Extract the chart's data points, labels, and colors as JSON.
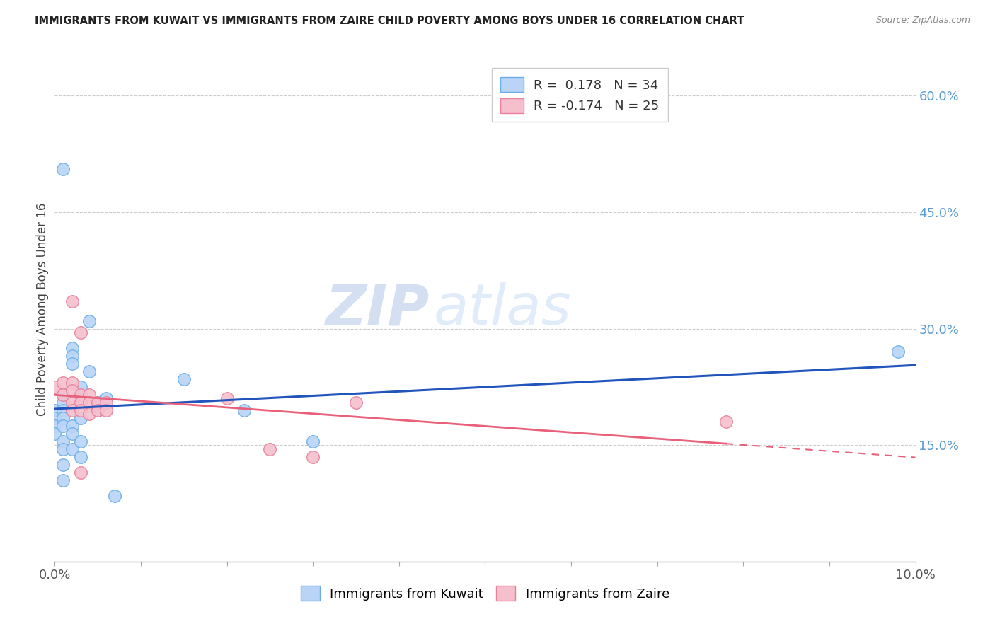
{
  "title": "IMMIGRANTS FROM KUWAIT VS IMMIGRANTS FROM ZAIRE CHILD POVERTY AMONG BOYS UNDER 16 CORRELATION CHART",
  "source": "Source: ZipAtlas.com",
  "ylabel": "Child Poverty Among Boys Under 16",
  "xlim": [
    0.0,
    0.1
  ],
  "ylim": [
    0.0,
    0.65
  ],
  "x_ticks": [
    0.0,
    0.01,
    0.02,
    0.03,
    0.04,
    0.05,
    0.06,
    0.07,
    0.08,
    0.09,
    0.1
  ],
  "x_tick_labels": [
    "0.0%",
    "",
    "",
    "",
    "",
    "",
    "",
    "",
    "",
    "",
    "10.0%"
  ],
  "y_ticks_right": [
    0.15,
    0.3,
    0.45,
    0.6
  ],
  "y_tick_labels_right": [
    "15.0%",
    "30.0%",
    "45.0%",
    "60.0%"
  ],
  "kuwait_color": "#bad4f7",
  "kuwait_edge_color": "#6baee8",
  "zaire_color": "#f5bfce",
  "zaire_edge_color": "#e8809a",
  "line_kuwait_color": "#2255bb",
  "line_zaire_color": "#e8607a",
  "R_kuwait": 0.178,
  "N_kuwait": 34,
  "R_zaire": -0.174,
  "N_zaire": 25,
  "watermark_zip": "ZIP",
  "watermark_atlas": "atlas",
  "kuwait_x": [
    0.0,
    0.0,
    0.0,
    0.0,
    0.001,
    0.001,
    0.001,
    0.001,
    0.001,
    0.001,
    0.001,
    0.001,
    0.001,
    0.002,
    0.002,
    0.002,
    0.002,
    0.002,
    0.002,
    0.003,
    0.003,
    0.003,
    0.003,
    0.004,
    0.004,
    0.005,
    0.005,
    0.006,
    0.007,
    0.015,
    0.022,
    0.03,
    0.098,
    0.001
  ],
  "kuwait_y": [
    0.195,
    0.185,
    0.175,
    0.165,
    0.215,
    0.205,
    0.195,
    0.185,
    0.175,
    0.155,
    0.145,
    0.125,
    0.105,
    0.275,
    0.265,
    0.255,
    0.175,
    0.165,
    0.145,
    0.225,
    0.185,
    0.155,
    0.135,
    0.31,
    0.245,
    0.205,
    0.195,
    0.21,
    0.085,
    0.235,
    0.195,
    0.155,
    0.27,
    0.505
  ],
  "zaire_x": [
    0.0,
    0.001,
    0.001,
    0.002,
    0.002,
    0.002,
    0.002,
    0.003,
    0.003,
    0.003,
    0.003,
    0.004,
    0.004,
    0.004,
    0.005,
    0.005,
    0.006,
    0.006,
    0.02,
    0.025,
    0.03,
    0.035,
    0.078,
    0.002,
    0.003
  ],
  "zaire_y": [
    0.225,
    0.23,
    0.215,
    0.23,
    0.22,
    0.205,
    0.195,
    0.215,
    0.205,
    0.195,
    0.115,
    0.215,
    0.205,
    0.19,
    0.205,
    0.195,
    0.205,
    0.195,
    0.21,
    0.145,
    0.135,
    0.205,
    0.18,
    0.335,
    0.295
  ]
}
